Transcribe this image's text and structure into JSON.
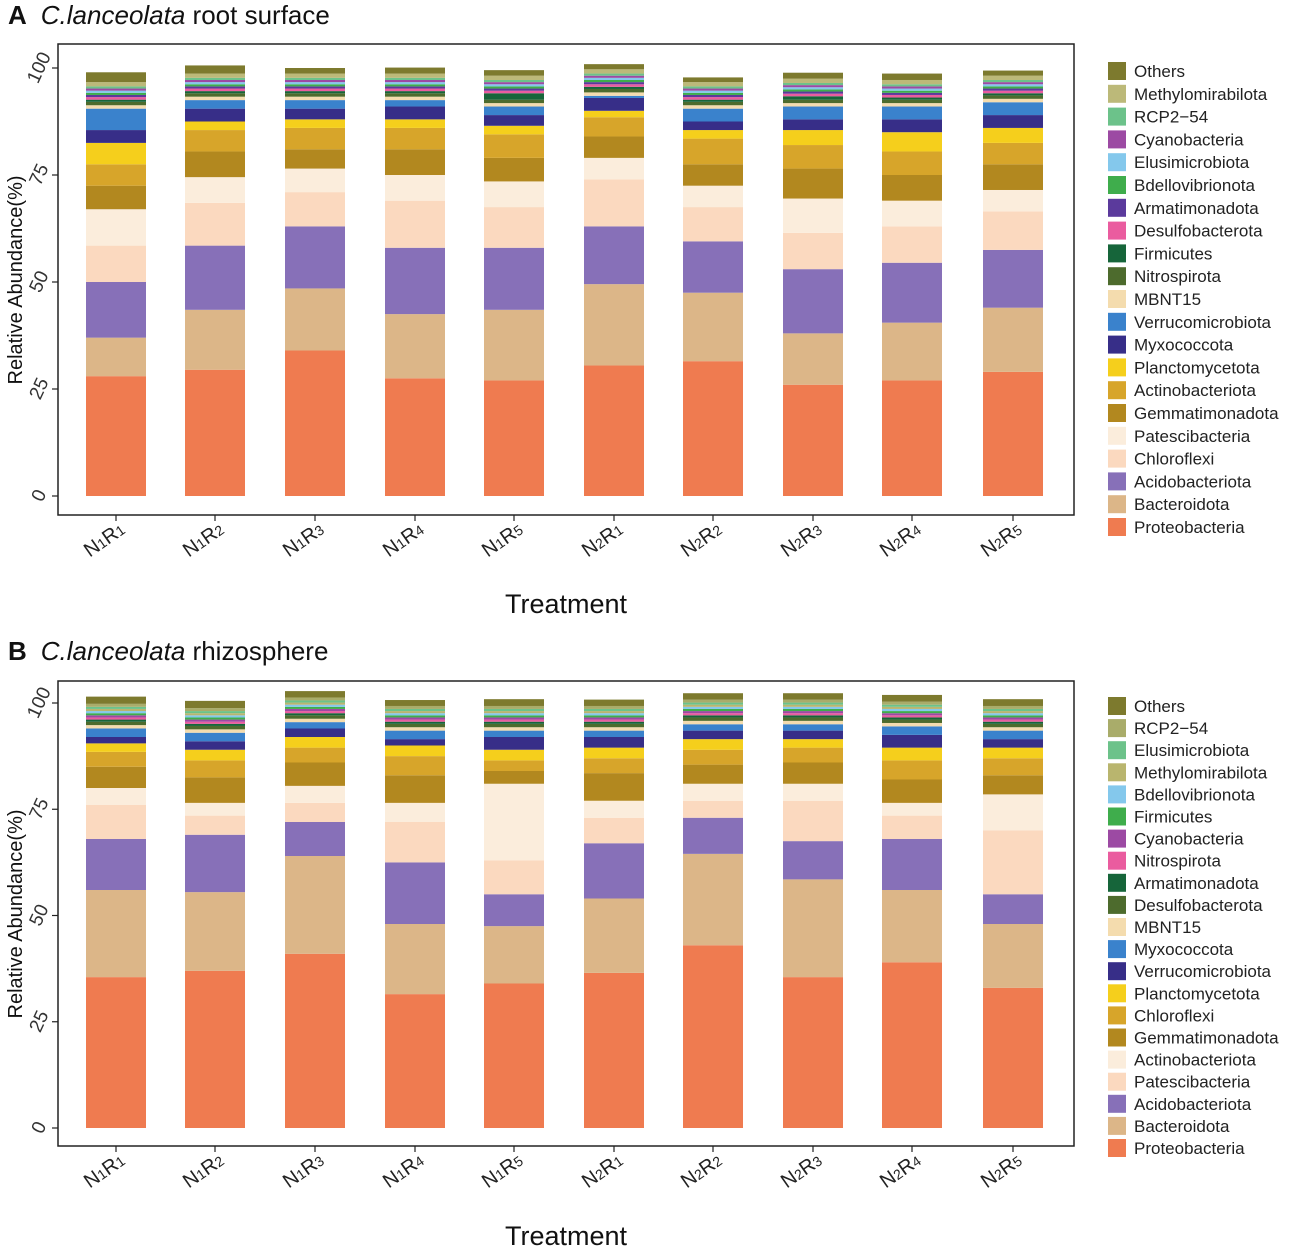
{
  "colors": {
    "Others": "#7d7a2e",
    "Methylomirabilota": "#b9b56e",
    "RCP2-54": "#a9ac6a",
    "Cyanobacteria": "#9c4aa3",
    "Elusimicrobiota": "#6cc28a",
    "Bdellovibrionota": "#84c8ec",
    "Armatimonadota": "#16653a",
    "Desulfobacterota": "#4d6b2d",
    "Firmicutes": "#3fad4c",
    "Nitrospirota": "#ea5c9f",
    "MBNT15": "#f4dcae",
    "Verrucomicrobiota": "#372e88",
    "Myxococcota": "#3a82cc",
    "Planctomycetota": "#f5cf1c",
    "Actinobacteriota": "#fbeddc",
    "Chloroflexi": "#d7a52a",
    "Gemmatimonadota": "#b2881f",
    "Patescibacteria": "#fbd9bf",
    "Acidobacteriota": "#8770b8",
    "Bacteroidota": "#dcb688",
    "Proteobacteria": "#ef7b50"
  },
  "colors_A_override": {
    "Myxococcota": "#372e88",
    "Verrucomicrobiota": "#3a82cc",
    "Methylomirabilota": "#bcb979",
    "Bdellovibrionota": "#3fad4c",
    "Elusimicrobiota": "#84c8ec",
    "RCP2-54": "#6cc28a",
    "Desulfobacterota": "#ea5c9f",
    "Nitrospirota": "#4d6b2d",
    "Firmicutes": "#16653a",
    "Armatimonadota": "#5b3a9c",
    "Actinobacteriota": "#d7a52a",
    "Chloroflexi": "#fbd9bf",
    "Patescibacteria": "#fbeddc"
  },
  "chart_data": [
    {
      "panel_letter": "A",
      "title_italic": "C.lanceolata",
      "title_rest": " root surface",
      "type": "bar",
      "stacked": true,
      "xlabel": "Treatment",
      "ylabel": "Relative Abundance(%)",
      "ylim": [
        0,
        100
      ],
      "yticks": [
        "0",
        "25",
        "50",
        "75",
        "100"
      ],
      "categories": [
        "N1R1",
        "N1R2",
        "N1R3",
        "N1R4",
        "N1R5",
        "N2R1",
        "N2R2",
        "N2R3",
        "N2R4",
        "N2R5"
      ],
      "legend": [
        "Others",
        "Methylomirabilota",
        "RCP2−54",
        "Cyanobacteria",
        "Elusimicrobiota",
        "Bdellovibrionota",
        "Armatimonadota",
        "Desulfobacterota",
        "Firmicutes",
        "Nitrospirota",
        "MBNT15",
        "Verrucomicrobiota",
        "Myxococcota",
        "Planctomycetota",
        "Actinobacteriota",
        "Gemmatimonadota",
        "Patescibacteria",
        "Chloroflexi",
        "Acidobacteriota",
        "Bacteroidota",
        "Proteobacteria"
      ],
      "series": [
        {
          "name": "Proteobacteria",
          "values": [
            28,
            29.5,
            34,
            27.5,
            27,
            30.5,
            31.5,
            26,
            27,
            29
          ]
        },
        {
          "name": "Bacteroidota",
          "values": [
            9,
            14,
            14.5,
            15,
            16.5,
            19,
            16,
            12,
            13.5,
            15
          ]
        },
        {
          "name": "Acidobacteriota",
          "values": [
            13,
            15,
            14.5,
            15.5,
            14.5,
            13.5,
            12,
            15,
            14,
            13.5
          ]
        },
        {
          "name": "Chloroflexi",
          "values": [
            8.5,
            10,
            8,
            11,
            9.5,
            11,
            8,
            8.5,
            8.5,
            9
          ]
        },
        {
          "name": "Patescibacteria",
          "values": [
            8.5,
            6,
            5.5,
            6,
            6,
            5,
            5,
            8,
            6,
            5
          ]
        },
        {
          "name": "Gemmatimonadota",
          "values": [
            5.5,
            6,
            4.5,
            6,
            5.5,
            5,
            5,
            7,
            6,
            6
          ]
        },
        {
          "name": "Actinobacteriota",
          "values": [
            5,
            5,
            5,
            5,
            5.5,
            4.5,
            6,
            5.5,
            5.5,
            5
          ]
        },
        {
          "name": "Planctomycetota",
          "values": [
            5,
            2,
            2,
            2,
            2,
            1.5,
            2,
            3.5,
            4.5,
            3.5
          ]
        },
        {
          "name": "Myxococcota",
          "values": [
            3,
            3,
            2.5,
            3,
            2.5,
            3,
            2,
            2.5,
            3,
            3
          ]
        },
        {
          "name": "Verrucomicrobiota",
          "values": [
            5,
            2,
            2,
            1.5,
            2,
            0.5,
            3,
            3,
            3,
            3
          ]
        },
        {
          "name": "MBNT15",
          "values": [
            0.8,
            0.8,
            0.8,
            0.8,
            0.8,
            0.8,
            0.8,
            0.8,
            0.8,
            0.8
          ]
        },
        {
          "name": "Nitrospirota",
          "values": [
            0.8,
            0.8,
            0.8,
            0.8,
            0.8,
            0.8,
            0.8,
            0.8,
            0.8,
            0.8
          ]
        },
        {
          "name": "Firmicutes",
          "values": [
            0.5,
            0.5,
            0.5,
            0.5,
            1.5,
            0.5,
            0.5,
            0.8,
            0.5,
            0.5
          ]
        },
        {
          "name": "Desulfobacterota",
          "values": [
            0.6,
            0.6,
            0.6,
            0.6,
            0.6,
            0.6,
            0.6,
            0.6,
            0.6,
            0.6
          ]
        },
        {
          "name": "Armatimonadota",
          "values": [
            0.5,
            0.5,
            0.5,
            0.5,
            0.5,
            0.5,
            0.5,
            0.5,
            0.5,
            0.5
          ]
        },
        {
          "name": "Bdellovibrionota",
          "values": [
            0.5,
            0.5,
            0.5,
            0.5,
            0.5,
            0.5,
            0.5,
            0.5,
            0.5,
            0.5
          ]
        },
        {
          "name": "Elusimicrobiota",
          "values": [
            0.5,
            0.5,
            0.5,
            0.5,
            0.5,
            0.5,
            0.5,
            0.5,
            0.5,
            0.5
          ]
        },
        {
          "name": "Cyanobacteria",
          "values": [
            0.5,
            0.5,
            0.5,
            0.5,
            0.5,
            0.5,
            0.5,
            0.5,
            0.5,
            0.5
          ]
        },
        {
          "name": "RCP2-54",
          "values": [
            0.5,
            0.5,
            0.5,
            0.5,
            0.5,
            0.5,
            0.5,
            0.5,
            0.5,
            0.5
          ]
        },
        {
          "name": "Methylomirabilota",
          "values": [
            1,
            1,
            1,
            1,
            1,
            1,
            1,
            1,
            1,
            1
          ]
        },
        {
          "name": "Others",
          "values": [
            2.3,
            1.9,
            1.3,
            1.4,
            1.3,
            1.2,
            1.1,
            1.4,
            1.5,
            1.2
          ]
        }
      ]
    },
    {
      "panel_letter": "B",
      "title_italic": "C.lanceolata",
      "title_rest": " rhizosphere",
      "type": "bar",
      "stacked": true,
      "xlabel": "Treatment",
      "ylabel": "Relative Abundance(%)",
      "ylim": [
        0,
        100
      ],
      "yticks": [
        "0",
        "25",
        "50",
        "75",
        "100"
      ],
      "categories": [
        "N1R1",
        "N1R2",
        "N1R3",
        "N1R4",
        "N1R5",
        "N2R1",
        "N2R2",
        "N2R3",
        "N2R4",
        "N2R5"
      ],
      "legend": [
        "Others",
        "RCP2−54",
        "Elusimicrobiota",
        "Methylomirabilota",
        "Bdellovibrionota",
        "Firmicutes",
        "Cyanobacteria",
        "Nitrospirota",
        "Armatimonadota",
        "Desulfobacterota",
        "MBNT15",
        "Myxococcota",
        "Verrucomicrobiota",
        "Planctomycetota",
        "Chloroflexi",
        "Gemmatimonadota",
        "Actinobacteriota",
        "Patescibacteria",
        "Acidobacteriota",
        "Bacteroidota",
        "Proteobacteria"
      ],
      "series": [
        {
          "name": "Proteobacteria",
          "values": [
            35.5,
            37,
            41,
            31.5,
            34,
            36.5,
            43,
            35.5,
            39,
            33
          ]
        },
        {
          "name": "Bacteroidota",
          "values": [
            20.5,
            18.5,
            23,
            16.5,
            13.5,
            17.5,
            21.5,
            23,
            17,
            15
          ]
        },
        {
          "name": "Acidobacteriota",
          "values": [
            12,
            13.5,
            8,
            14.5,
            7.5,
            13,
            8.5,
            9,
            12,
            7
          ]
        },
        {
          "name": "Patescibacteria",
          "values": [
            8,
            4.5,
            4.5,
            9.5,
            8,
            6,
            4,
            9.5,
            5.5,
            15
          ]
        },
        {
          "name": "Actinobacteriota",
          "values": [
            4,
            3,
            4,
            4.5,
            18,
            4,
            4,
            4,
            3,
            8.5
          ]
        },
        {
          "name": "Gemmatimonadota",
          "values": [
            5,
            6,
            5.5,
            6.5,
            3,
            6.5,
            4.5,
            5,
            5.5,
            4.5
          ]
        },
        {
          "name": "Chloroflexi",
          "values": [
            3.5,
            4,
            3.5,
            4.5,
            2.5,
            3.5,
            3.5,
            3.5,
            4.5,
            4
          ]
        },
        {
          "name": "Planctomycetota",
          "values": [
            2,
            2.5,
            2.5,
            2.5,
            2.5,
            2.5,
            2.5,
            2,
            3,
            2.5
          ]
        },
        {
          "name": "Verrucomicrobiota",
          "values": [
            1.5,
            2,
            2,
            1.5,
            3,
            2.5,
            2,
            2,
            3,
            2
          ]
        },
        {
          "name": "Myxococcota",
          "values": [
            2,
            2,
            1.5,
            2,
            1.5,
            1.5,
            1.5,
            1.5,
            2,
            2
          ]
        },
        {
          "name": "MBNT15",
          "values": [
            0.8,
            0.8,
            0.8,
            0.8,
            0.8,
            0.8,
            0.8,
            0.8,
            0.8,
            0.8
          ]
        },
        {
          "name": "Desulfobacterota",
          "values": [
            0.8,
            0.8,
            0.8,
            0.8,
            0.8,
            0.8,
            0.8,
            0.8,
            0.8,
            0.8
          ]
        },
        {
          "name": "Armatimonadota",
          "values": [
            0.5,
            0.5,
            0.5,
            0.5,
            0.5,
            0.5,
            0.5,
            0.5,
            0.5,
            0.5
          ]
        },
        {
          "name": "Nitrospirota",
          "values": [
            0.5,
            0.5,
            0.5,
            0.5,
            0.5,
            0.5,
            0.5,
            0.5,
            0.5,
            0.5
          ]
        },
        {
          "name": "Cyanobacteria",
          "values": [
            0.5,
            0.5,
            0.5,
            0.5,
            0.5,
            0.5,
            0.5,
            0.5,
            0.5,
            0.5
          ]
        },
        {
          "name": "Firmicutes",
          "values": [
            0.5,
            0.5,
            0.5,
            0.5,
            0.5,
            0.5,
            0.5,
            0.5,
            0.5,
            0.5
          ]
        },
        {
          "name": "Bdellovibrionota",
          "values": [
            0.5,
            0.5,
            0.5,
            0.5,
            0.5,
            0.5,
            0.5,
            0.5,
            0.5,
            0.5
          ]
        },
        {
          "name": "Methylomirabilota",
          "values": [
            0.5,
            0.5,
            0.5,
            0.5,
            0.5,
            0.5,
            0.5,
            0.5,
            0.5,
            0.5
          ]
        },
        {
          "name": "Elusimicrobiota",
          "values": [
            0.5,
            0.5,
            0.5,
            0.5,
            0.5,
            0.5,
            0.5,
            0.5,
            0.5,
            0.5
          ]
        },
        {
          "name": "RCP2-54",
          "values": [
            0.7,
            0.7,
            0.7,
            0.7,
            0.7,
            0.7,
            0.7,
            0.7,
            0.7,
            0.7
          ]
        },
        {
          "name": "Others",
          "values": [
            1.7,
            1.7,
            1.5,
            1.4,
            1.6,
            1.5,
            1.5,
            1.5,
            1.6,
            1.6
          ]
        }
      ]
    }
  ]
}
